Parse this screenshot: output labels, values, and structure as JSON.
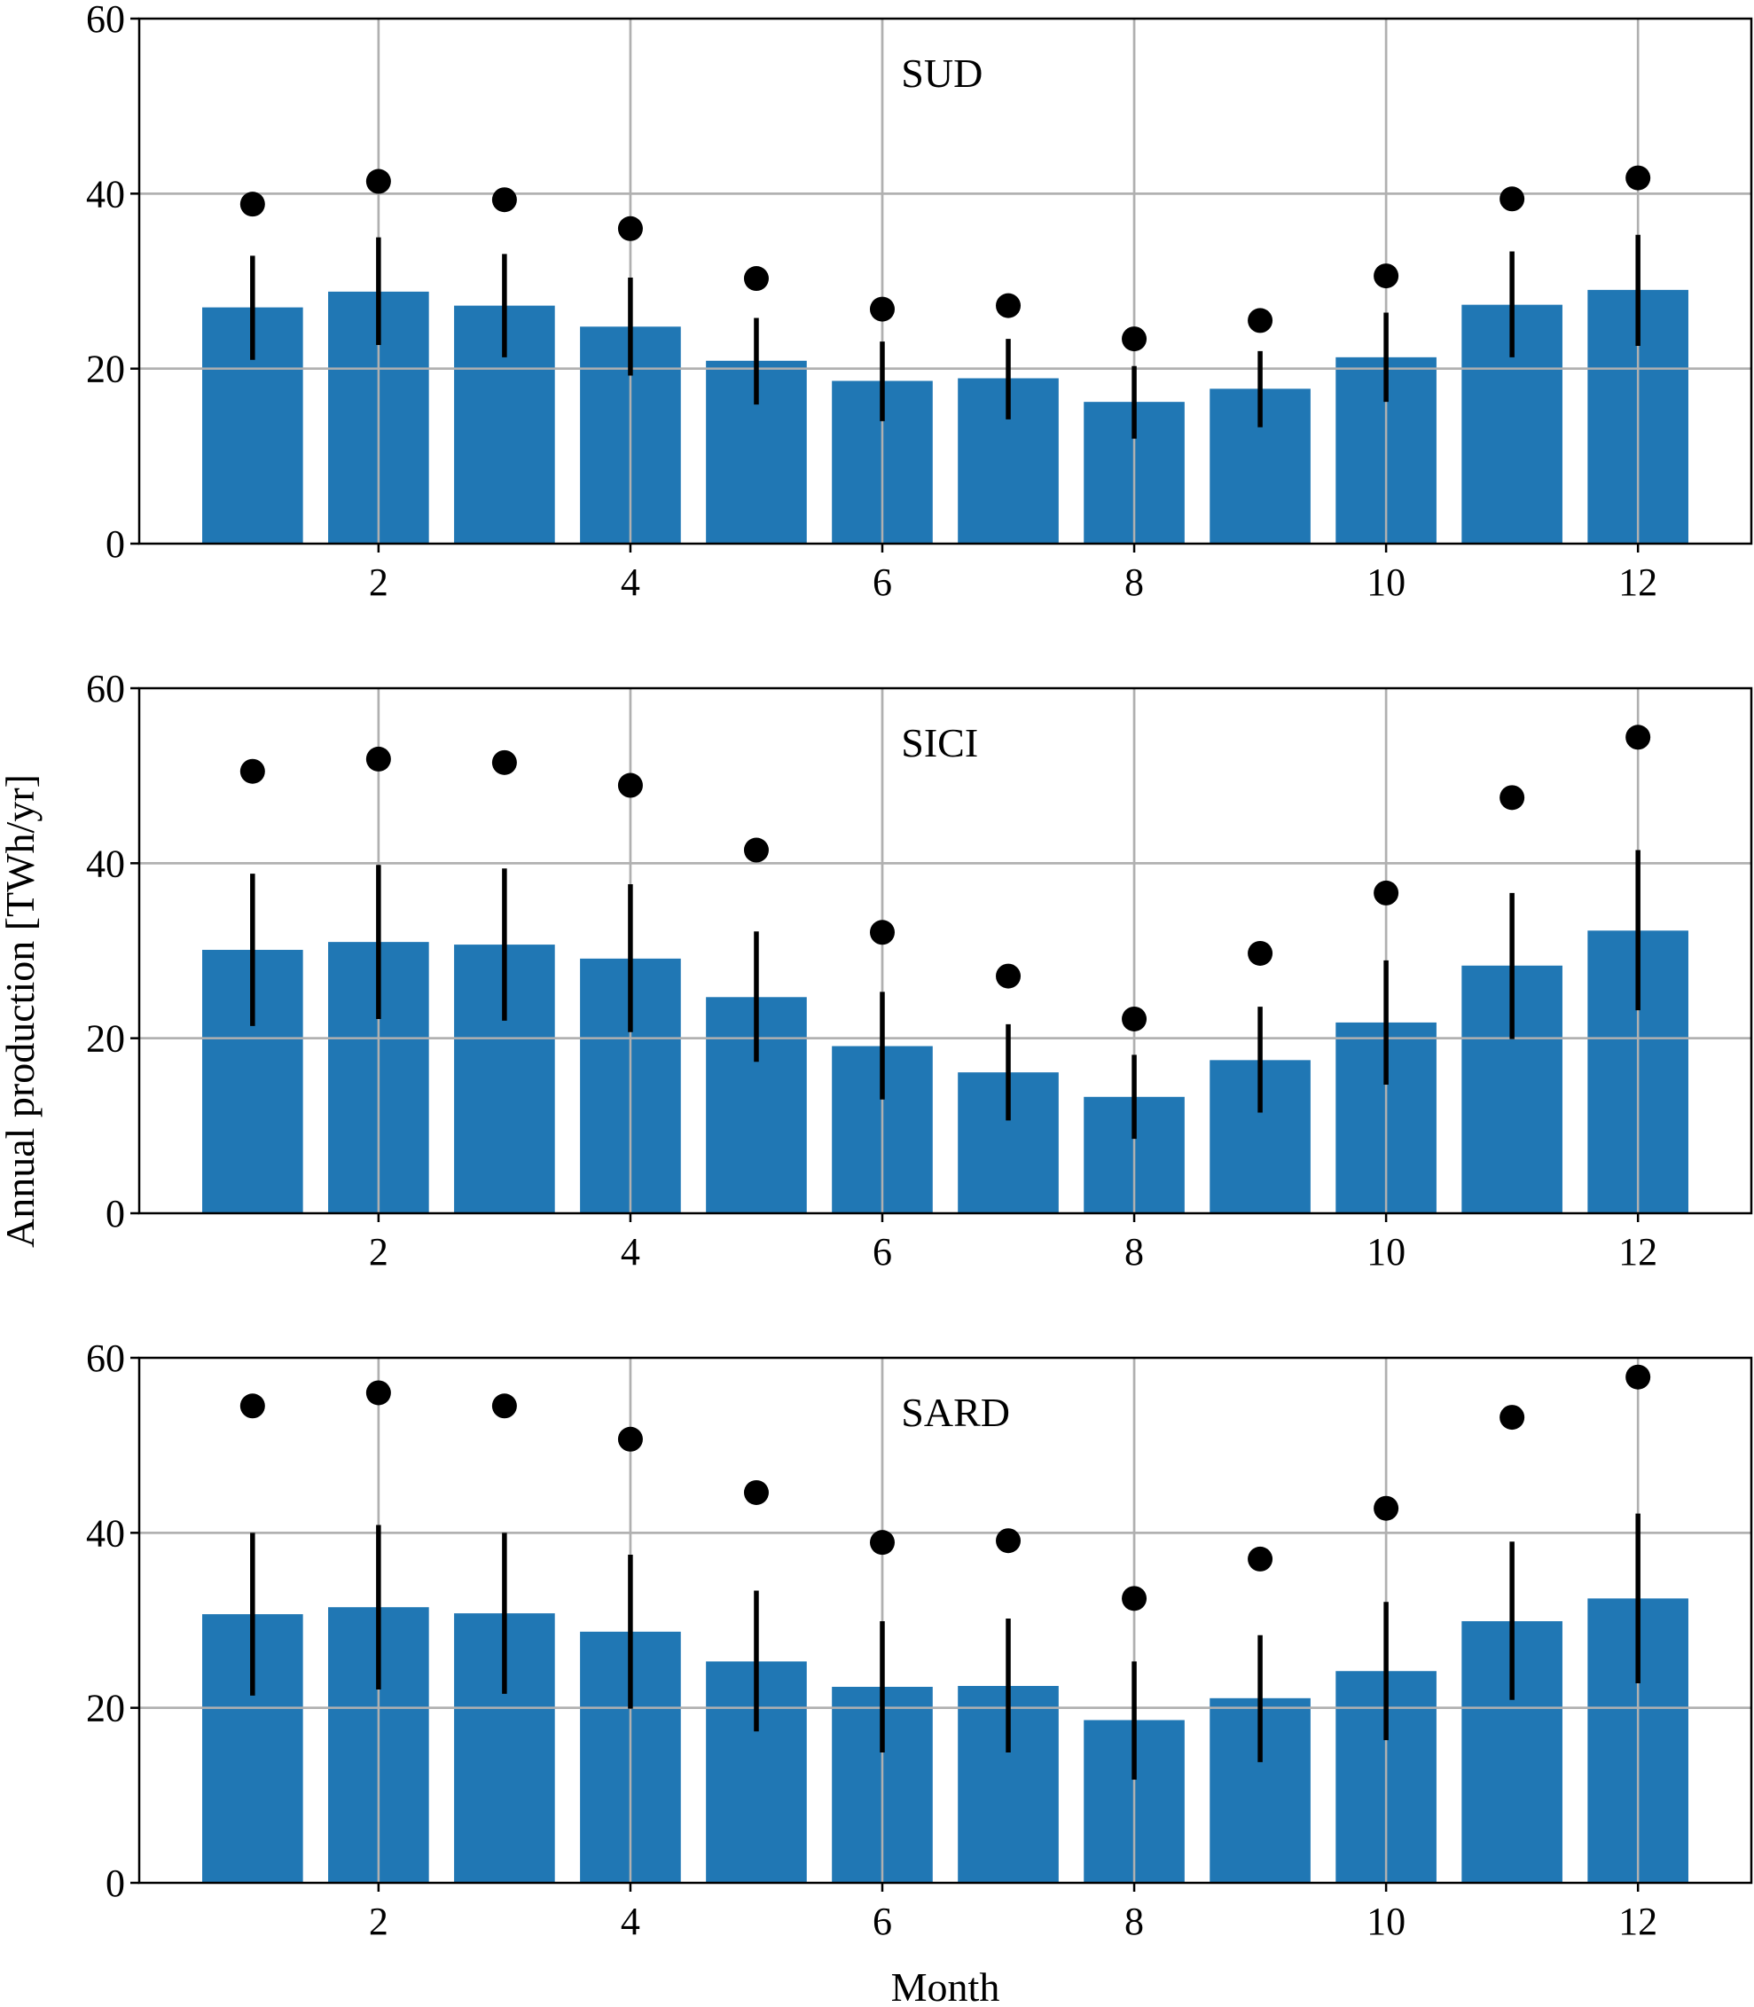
{
  "chart_data": {
    "type": "bar",
    "ylabel": "Annual production [TWh/yr]",
    "xlabel": "Month",
    "x": [
      1,
      2,
      3,
      4,
      5,
      6,
      7,
      8,
      9,
      10,
      11,
      12
    ],
    "xticks": [
      2,
      4,
      6,
      8,
      10,
      12
    ],
    "yticks": [
      0,
      20,
      40,
      60
    ],
    "ylim": [
      0,
      60
    ],
    "xlim": [
      0.1,
      12.9
    ],
    "grid": true,
    "bar_color": "#2077b4",
    "marker_color": "#000000",
    "panels": [
      {
        "title": "SUD",
        "bars": [
          27.0,
          28.8,
          27.2,
          24.8,
          20.9,
          18.6,
          18.9,
          16.2,
          17.7,
          21.3,
          27.3,
          29.0
        ],
        "err_low": [
          21.0,
          22.7,
          21.3,
          19.2,
          15.9,
          14.0,
          14.2,
          12.0,
          13.3,
          16.2,
          21.3,
          22.6
        ],
        "err_high": [
          32.9,
          35.0,
          33.1,
          30.4,
          25.8,
          23.1,
          23.4,
          20.3,
          22.0,
          26.4,
          33.4,
          35.3
        ],
        "dots": [
          38.8,
          41.4,
          39.3,
          36.0,
          30.3,
          26.8,
          27.2,
          23.4,
          25.5,
          30.6,
          39.4,
          41.8
        ]
      },
      {
        "title": "SICI",
        "bars": [
          30.1,
          31.0,
          30.7,
          29.1,
          24.7,
          19.1,
          16.1,
          13.3,
          17.5,
          21.8,
          28.3,
          32.3
        ],
        "err_low": [
          21.4,
          22.2,
          22.0,
          20.7,
          17.3,
          13.0,
          10.6,
          8.5,
          11.5,
          14.7,
          19.9,
          23.2
        ],
        "err_high": [
          38.8,
          39.8,
          39.4,
          37.6,
          32.2,
          25.3,
          21.6,
          18.1,
          23.6,
          28.9,
          36.6,
          41.5
        ],
        "dots": [
          50.5,
          51.9,
          51.5,
          48.9,
          41.5,
          32.1,
          27.1,
          22.2,
          29.7,
          36.6,
          47.5,
          54.4
        ]
      },
      {
        "title": "SARD",
        "bars": [
          30.7,
          31.5,
          30.8,
          28.7,
          25.3,
          22.4,
          22.5,
          18.6,
          21.1,
          24.2,
          29.9,
          32.5
        ],
        "err_low": [
          21.4,
          22.1,
          21.6,
          19.9,
          17.3,
          14.9,
          14.9,
          11.8,
          13.8,
          16.3,
          20.9,
          22.8
        ],
        "err_high": [
          40.0,
          40.9,
          40.0,
          37.5,
          33.4,
          29.9,
          30.2,
          25.3,
          28.3,
          32.1,
          39.0,
          42.2
        ],
        "dots": [
          54.5,
          56.0,
          54.5,
          50.7,
          44.6,
          38.9,
          39.1,
          32.5,
          37.0,
          42.8,
          53.2,
          57.8
        ]
      }
    ]
  }
}
